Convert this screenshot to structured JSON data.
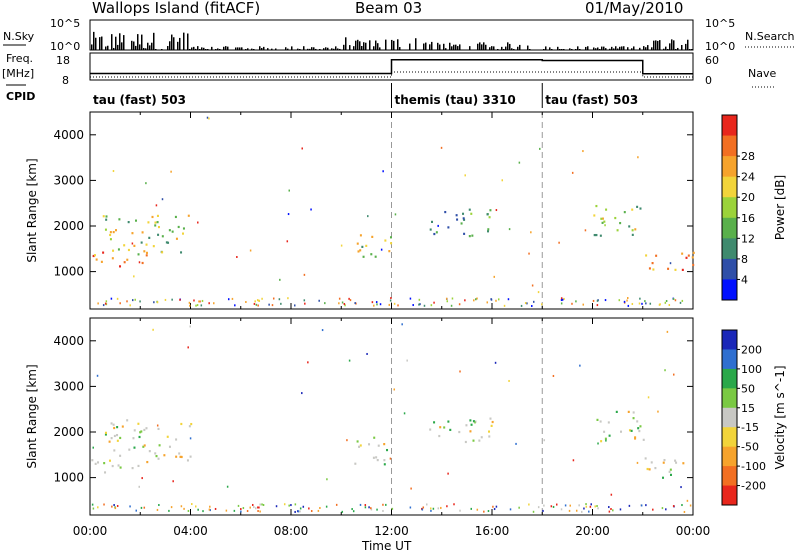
{
  "header": {
    "title": "Wallops Island (fitACF)",
    "beam": "Beam 03",
    "date": "01/May/2010"
  },
  "labels": {
    "nsky": "N.Sky",
    "nsearch": "N.Search",
    "freq": "Freq.",
    "freq_unit": "[MHz]",
    "nave": "Nave",
    "cpid": "CPID",
    "nsky_tick_high": "10^5",
    "nsky_tick_low": "10^0",
    "freq_tick_high": "18",
    "freq_tick_low": "8",
    "nave_tick_high": "60",
    "nave_tick_low": "0",
    "xlabel": "Time UT"
  },
  "cpid_segments": [
    {
      "label": "tau (fast) 503",
      "start_h": 0
    },
    {
      "label": "themis (tau) 3310",
      "start_h": 12
    },
    {
      "label": "tau (fast) 503",
      "start_h": 18
    }
  ],
  "chart_data": [
    {
      "type": "heatmap",
      "panel": "power",
      "xlabel": "",
      "ylabel": "Slant Range [km]",
      "xlim_hours": [
        0,
        24
      ],
      "ylim_km": [
        180,
        4500
      ],
      "x_ticks": [
        "00:00",
        "04:00",
        "08:00",
        "12:00",
        "16:00",
        "20:00",
        "00:00"
      ],
      "y_ticks": [
        1000,
        2000,
        3000,
        4000
      ],
      "colorbar": {
        "label": "Power [dB]",
        "ticks": [
          "4",
          "8",
          "12",
          "16",
          "20",
          "24",
          "28"
        ],
        "colors": [
          "#0010ff",
          "#2f4fa8",
          "#3f8a6e",
          "#59b04b",
          "#9bd33a",
          "#f2d43a",
          "#f6a32c",
          "#f26f22",
          "#e8261c"
        ]
      },
      "echo_bands": [
        {
          "t_start": 0.0,
          "t_end": 2.3,
          "range_low": 1100,
          "range_high": 1450,
          "level": "high"
        },
        {
          "t_start": 0.5,
          "t_end": 4.0,
          "range_low": 1400,
          "range_high": 2300,
          "level": "medium"
        },
        {
          "t_start": 10.5,
          "t_end": 12.0,
          "range_low": 1300,
          "range_high": 1900,
          "level": "medium"
        },
        {
          "t_start": 13.5,
          "t_end": 16.0,
          "range_low": 1800,
          "range_high": 2400,
          "level": "low"
        },
        {
          "t_start": 20.0,
          "t_end": 22.0,
          "range_low": 1800,
          "range_high": 2500,
          "level": "medium"
        },
        {
          "t_start": 22.0,
          "t_end": 24.0,
          "range_low": 1000,
          "range_high": 1450,
          "level": "high"
        }
      ]
    },
    {
      "type": "heatmap",
      "panel": "velocity",
      "xlabel": "Time UT",
      "ylabel": "Slant Range [km]",
      "xlim_hours": [
        0,
        24
      ],
      "ylim_km": [
        180,
        4500
      ],
      "x_ticks": [
        "00:00",
        "04:00",
        "08:00",
        "12:00",
        "16:00",
        "20:00",
        "00:00"
      ],
      "y_ticks": [
        1000,
        2000,
        3000,
        4000
      ],
      "colorbar": {
        "label": "Velocity [m s^-1]",
        "ticks": [
          "200",
          "100",
          "50",
          "15",
          "-15",
          "-50",
          "-100",
          "-200"
        ],
        "colors": [
          "#1a27b8",
          "#2f6fd0",
          "#2aa84a",
          "#7ac943",
          "#c8c8c4",
          "#f2d43a",
          "#f6a32c",
          "#f26f22",
          "#e8261c"
        ]
      },
      "echo_bands": [
        {
          "t_start": 0.0,
          "t_end": 2.3,
          "range_low": 1100,
          "range_high": 1450,
          "level": "ground"
        },
        {
          "t_start": 0.5,
          "t_end": 4.0,
          "range_low": 1400,
          "range_high": 2300,
          "level": "ground"
        },
        {
          "t_start": 10.5,
          "t_end": 12.0,
          "range_low": 1300,
          "range_high": 1900,
          "level": "ground"
        },
        {
          "t_start": 13.5,
          "t_end": 16.0,
          "range_low": 1800,
          "range_high": 2400,
          "level": "ground"
        },
        {
          "t_start": 20.0,
          "t_end": 22.0,
          "range_low": 1800,
          "range_high": 2500,
          "level": "ground"
        },
        {
          "t_start": 22.0,
          "t_end": 24.0,
          "range_low": 1000,
          "range_high": 1450,
          "level": "ground"
        }
      ]
    }
  ],
  "freq_series": {
    "segments": [
      {
        "t_start": 0,
        "t_end": 12,
        "value_mhz": 10.4
      },
      {
        "t_start": 12,
        "t_end": 18,
        "value_mhz": 15.5
      },
      {
        "t_start": 18,
        "t_end": 22,
        "value_mhz": 15.2
      },
      {
        "t_start": 22,
        "t_end": 24,
        "value_mhz": 10.3
      }
    ]
  }
}
